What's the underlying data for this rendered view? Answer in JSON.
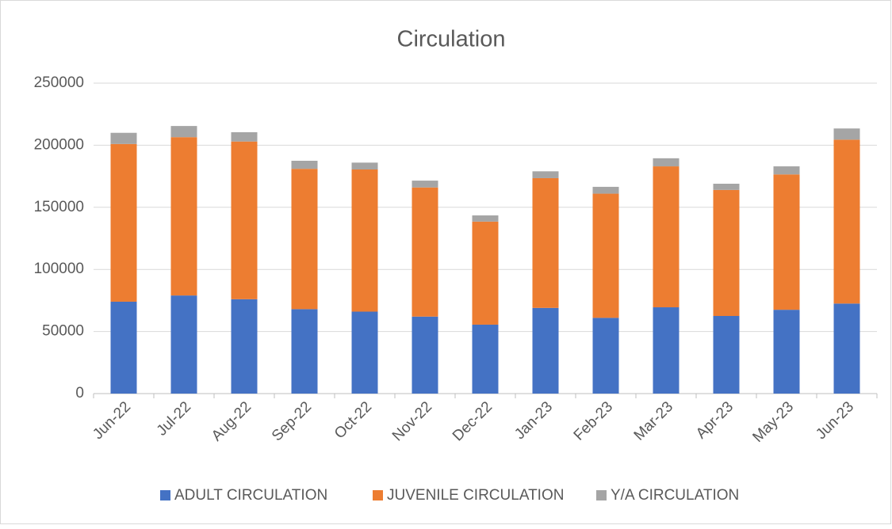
{
  "chart_data": {
    "type": "stacked_bar",
    "title": "Circulation",
    "categories": [
      "Jun-22",
      "Jul-22",
      "Aug-22",
      "Sep-22",
      "Oct-22",
      "Nov-22",
      "Dec-22",
      "Jan-23",
      "Feb-23",
      "Mar-23",
      "Apr-23",
      "May-23",
      "Jun-23"
    ],
    "series": [
      {
        "name": "ADULT CIRCULATION",
        "color": "#4472c4",
        "values": [
          74000,
          79000,
          76000,
          68000,
          66000,
          62000,
          55500,
          69000,
          61000,
          69500,
          62500,
          67500,
          72500
        ]
      },
      {
        "name": "JUVENILE CIRCULATION",
        "color": "#ed7d31",
        "values": [
          127000,
          127500,
          127000,
          113000,
          114500,
          104000,
          83000,
          104500,
          100000,
          113500,
          101500,
          109000,
          132000
        ]
      },
      {
        "name": "Y/A CIRCULATION",
        "color": "#a5a5a5",
        "values": [
          9000,
          9000,
          7500,
          6500,
          5500,
          5500,
          5000,
          5500,
          5500,
          6500,
          5000,
          6500,
          9000
        ]
      }
    ],
    "ylim": [
      0,
      250000
    ],
    "yticks": [
      0,
      50000,
      100000,
      150000,
      200000,
      250000
    ],
    "grid": true,
    "legend": "bottom"
  }
}
